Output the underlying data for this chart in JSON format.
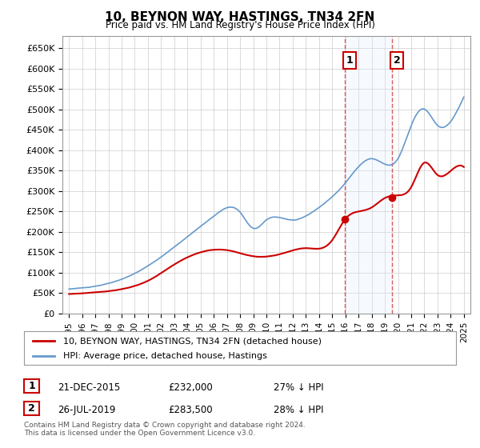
{
  "title": "10, BEYNON WAY, HASTINGS, TN34 2FN",
  "subtitle": "Price paid vs. HM Land Registry's House Price Index (HPI)",
  "legend_entry1": "10, BEYNON WAY, HASTINGS, TN34 2FN (detached house)",
  "legend_entry2": "HPI: Average price, detached house, Hastings",
  "transaction1_label": "1",
  "transaction1_date": "21-DEC-2015",
  "transaction1_price": "£232,000",
  "transaction1_hpi": "27% ↓ HPI",
  "transaction2_label": "2",
  "transaction2_date": "26-JUL-2019",
  "transaction2_price": "£283,500",
  "transaction2_hpi": "28% ↓ HPI",
  "copyright_text": "Contains HM Land Registry data © Crown copyright and database right 2024.\nThis data is licensed under the Open Government Licence v3.0.",
  "hpi_color": "#6699cc",
  "price_color": "#cc0000",
  "marker_color": "#cc0000",
  "vline_color": "#cc3333",
  "shade_color": "#ddeeff",
  "ylim_min": 0,
  "ylim_max": 680000,
  "yticks": [
    0,
    50000,
    100000,
    150000,
    200000,
    250000,
    300000,
    350000,
    400000,
    450000,
    500000,
    550000,
    600000,
    650000
  ],
  "xlabel_start_year": 1995,
  "xlabel_end_year": 2025
}
